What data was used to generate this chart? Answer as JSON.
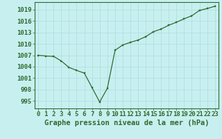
{
  "x": [
    0,
    1,
    2,
    3,
    4,
    5,
    6,
    7,
    8,
    9,
    10,
    11,
    12,
    13,
    14,
    15,
    16,
    17,
    18,
    19,
    20,
    21,
    22,
    23
  ],
  "y": [
    1007.0,
    1006.8,
    1006.7,
    1005.5,
    1003.8,
    1003.0,
    1002.3,
    998.5,
    994.7,
    998.3,
    1008.3,
    1009.7,
    1010.4,
    1011.0,
    1011.9,
    1013.2,
    1013.9,
    1014.9,
    1015.7,
    1016.6,
    1017.4,
    1018.8,
    1019.3,
    1019.9
  ],
  "line_color": "#2d6a2d",
  "marker_color": "#2d6a2d",
  "bg_color": "#c8eff0",
  "grid_color": "#b0dfe0",
  "xlabel": "Graphe pression niveau de la mer (hPa)",
  "yticks": [
    995,
    998,
    1001,
    1004,
    1007,
    1010,
    1013,
    1016,
    1019
  ],
  "ylim": [
    993.0,
    1021.0
  ],
  "xlim": [
    -0.5,
    23.5
  ],
  "title_color": "#2d6a2d",
  "xlabel_fontsize": 7.5,
  "tick_fontsize": 6.5
}
